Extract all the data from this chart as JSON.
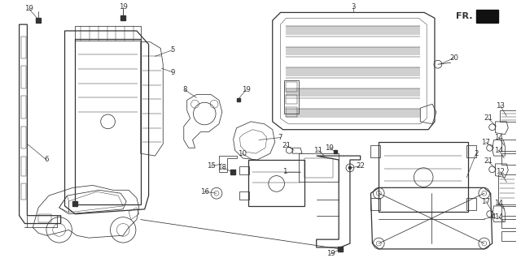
{
  "bg_color": "#ffffff",
  "line_color": "#333333",
  "text_color": "#111111",
  "figsize": [
    6.4,
    3.18
  ],
  "dpi": 100,
  "lw_main": 0.9,
  "lw_thin": 0.55,
  "lw_fine": 0.35
}
